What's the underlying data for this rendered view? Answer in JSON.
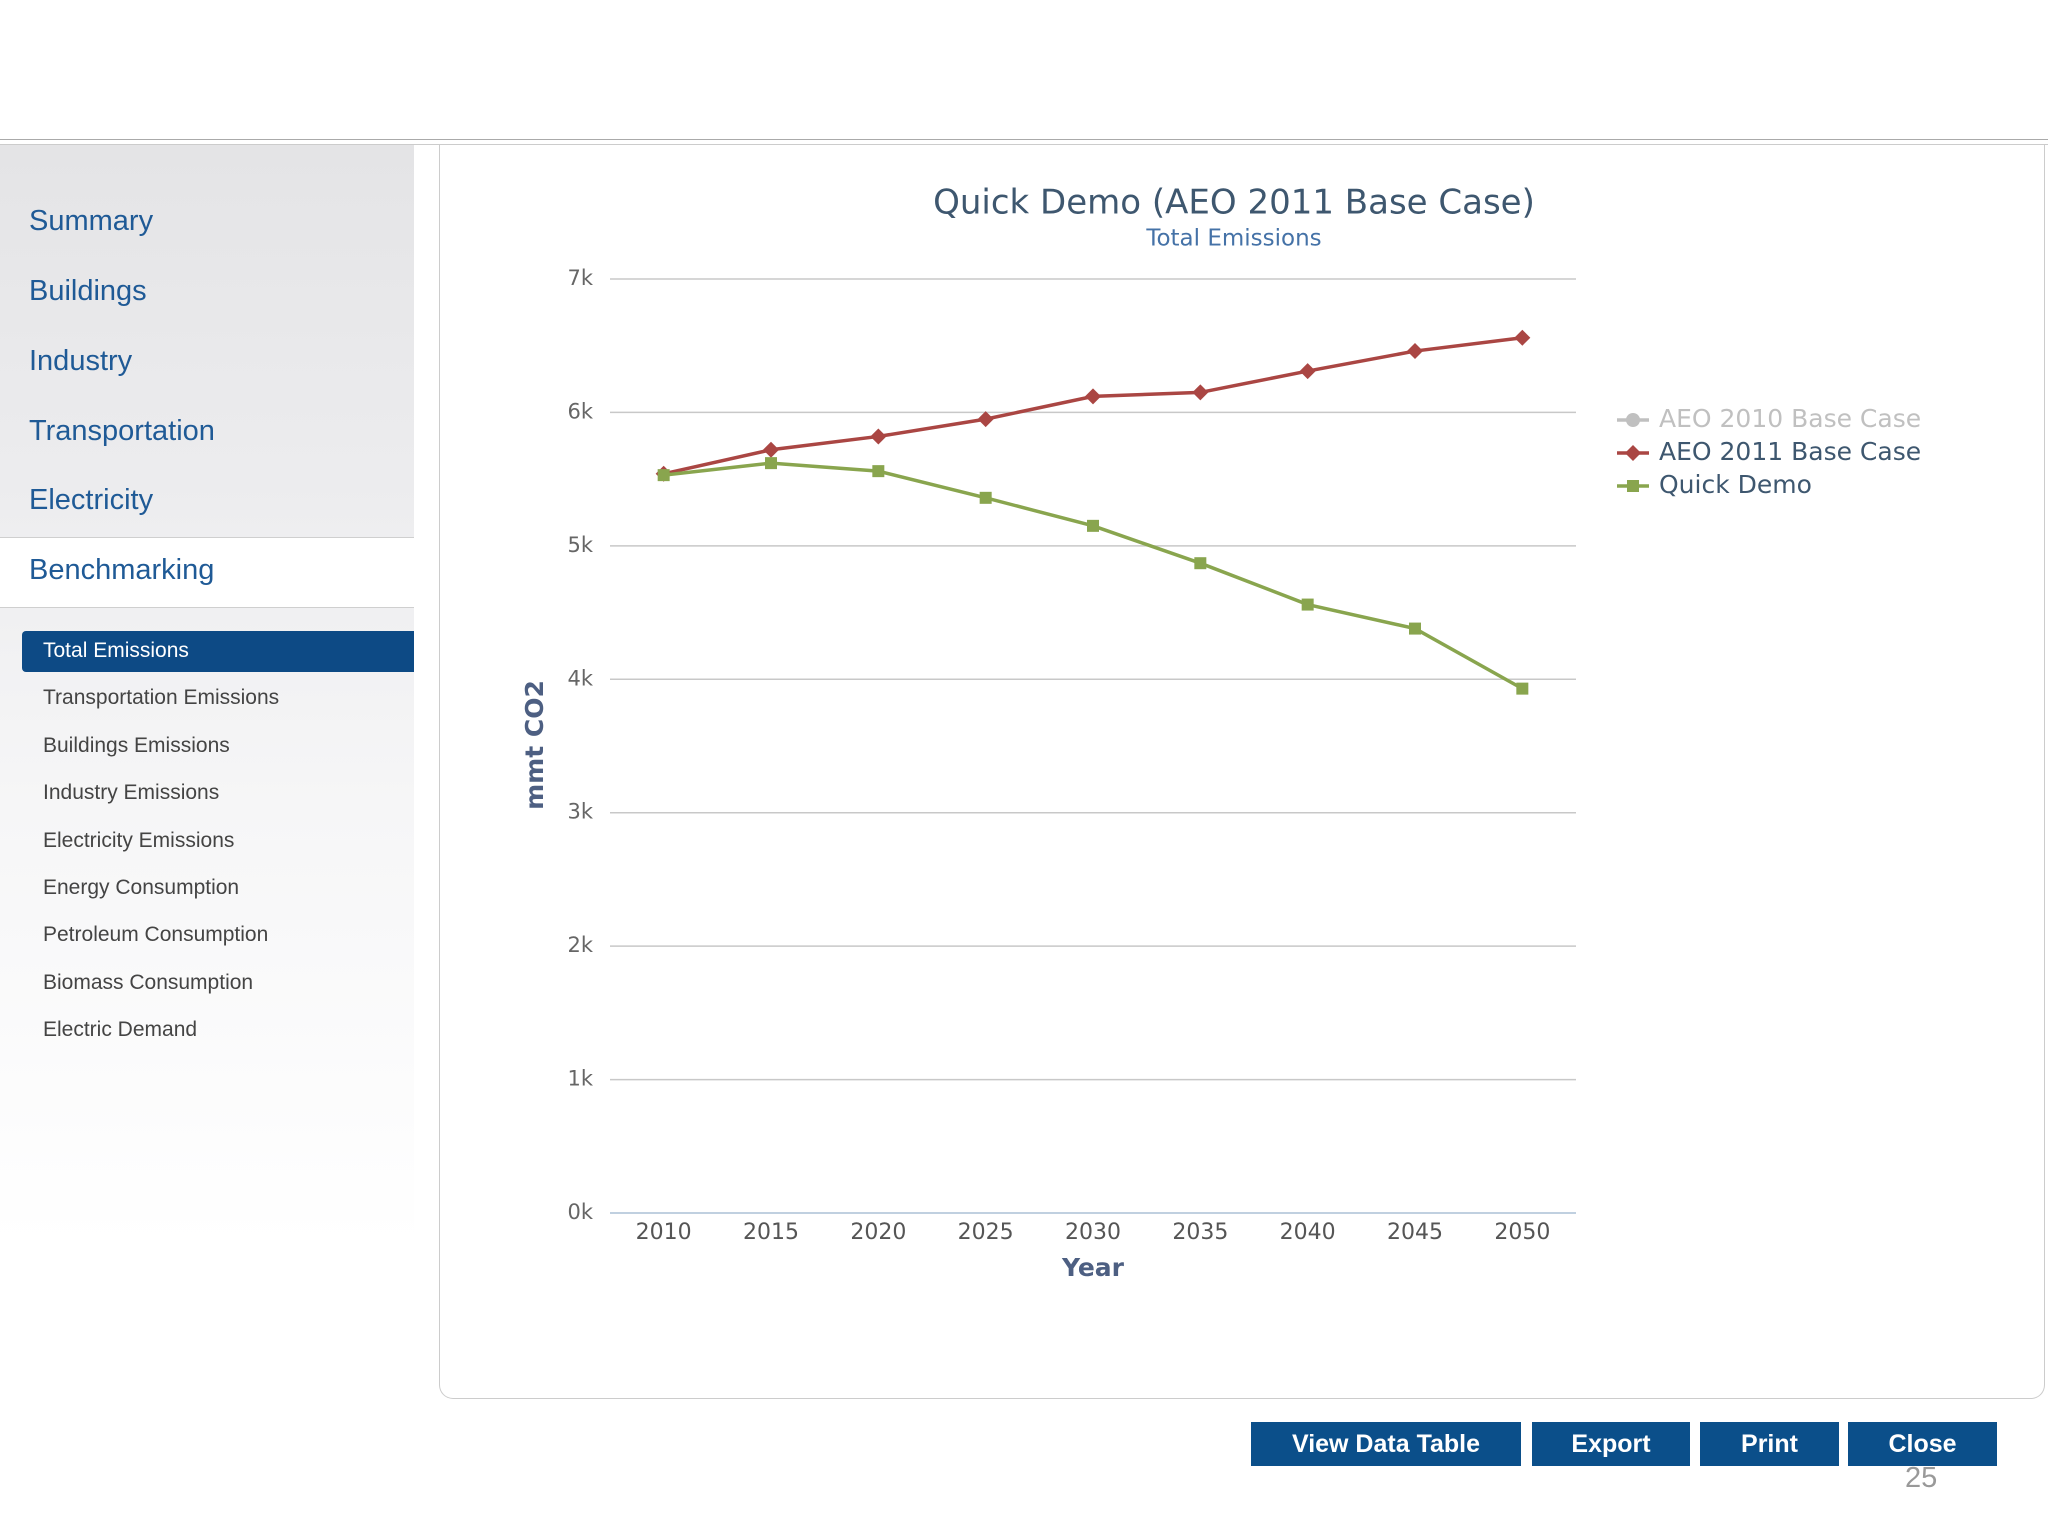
{
  "sidebar": {
    "nav": [
      "Summary",
      "Buildings",
      "Industry",
      "Transportation",
      "Electricity",
      "Benchmarking"
    ],
    "subnav": [
      "Total Emissions",
      "Transportation Emissions",
      "Buildings Emissions",
      "Industry Emissions",
      "Electricity Emissions",
      "Energy Consumption",
      "Petroleum Consumption",
      "Biomass Consumption",
      "Electric Demand"
    ]
  },
  "chart_data": {
    "type": "line",
    "title": "Quick Demo (AEO 2011 Base Case)",
    "subtitle": "Total Emissions",
    "x_label": "Year",
    "y_label": "mmt CO2",
    "x": [
      2010,
      2015,
      2020,
      2025,
      2030,
      2035,
      2040,
      2045,
      2050
    ],
    "xlim": [
      2007.5,
      2052.5
    ],
    "xticks": [
      2010,
      2015,
      2020,
      2025,
      2030,
      2035,
      2040,
      2045,
      2050
    ],
    "ylim": [
      0,
      7000
    ],
    "yticks": [
      {
        "value": 0,
        "label": "0k"
      },
      {
        "value": 1000,
        "label": "1k"
      },
      {
        "value": 2000,
        "label": "2k"
      },
      {
        "value": 3000,
        "label": "3k"
      },
      {
        "value": 4000,
        "label": "4k"
      },
      {
        "value": 5000,
        "label": "5k"
      },
      {
        "value": 6000,
        "label": "6k"
      },
      {
        "value": 7000,
        "label": "7k"
      }
    ],
    "grid": true,
    "legend": "right",
    "series": [
      {
        "name": "AEO 2010 Base Case",
        "color": "#c0c0c0",
        "marker": "circle",
        "values": [
          null,
          null,
          null,
          null,
          null,
          null,
          null,
          null,
          null
        ]
      },
      {
        "name": "AEO 2011 Base Case",
        "color": "#aa4643",
        "marker": "diamond",
        "values": [
          5540,
          5720,
          5820,
          5950,
          6120,
          6150,
          6310,
          6460,
          6560
        ]
      },
      {
        "name": "Quick Demo",
        "color": "#89a54e",
        "marker": "square",
        "values": [
          5530,
          5620,
          5560,
          5360,
          5150,
          4870,
          4560,
          4380,
          3930
        ]
      }
    ]
  },
  "buttons": [
    "View Data Table",
    "Export",
    "Print",
    "Close"
  ],
  "page_number": "25"
}
